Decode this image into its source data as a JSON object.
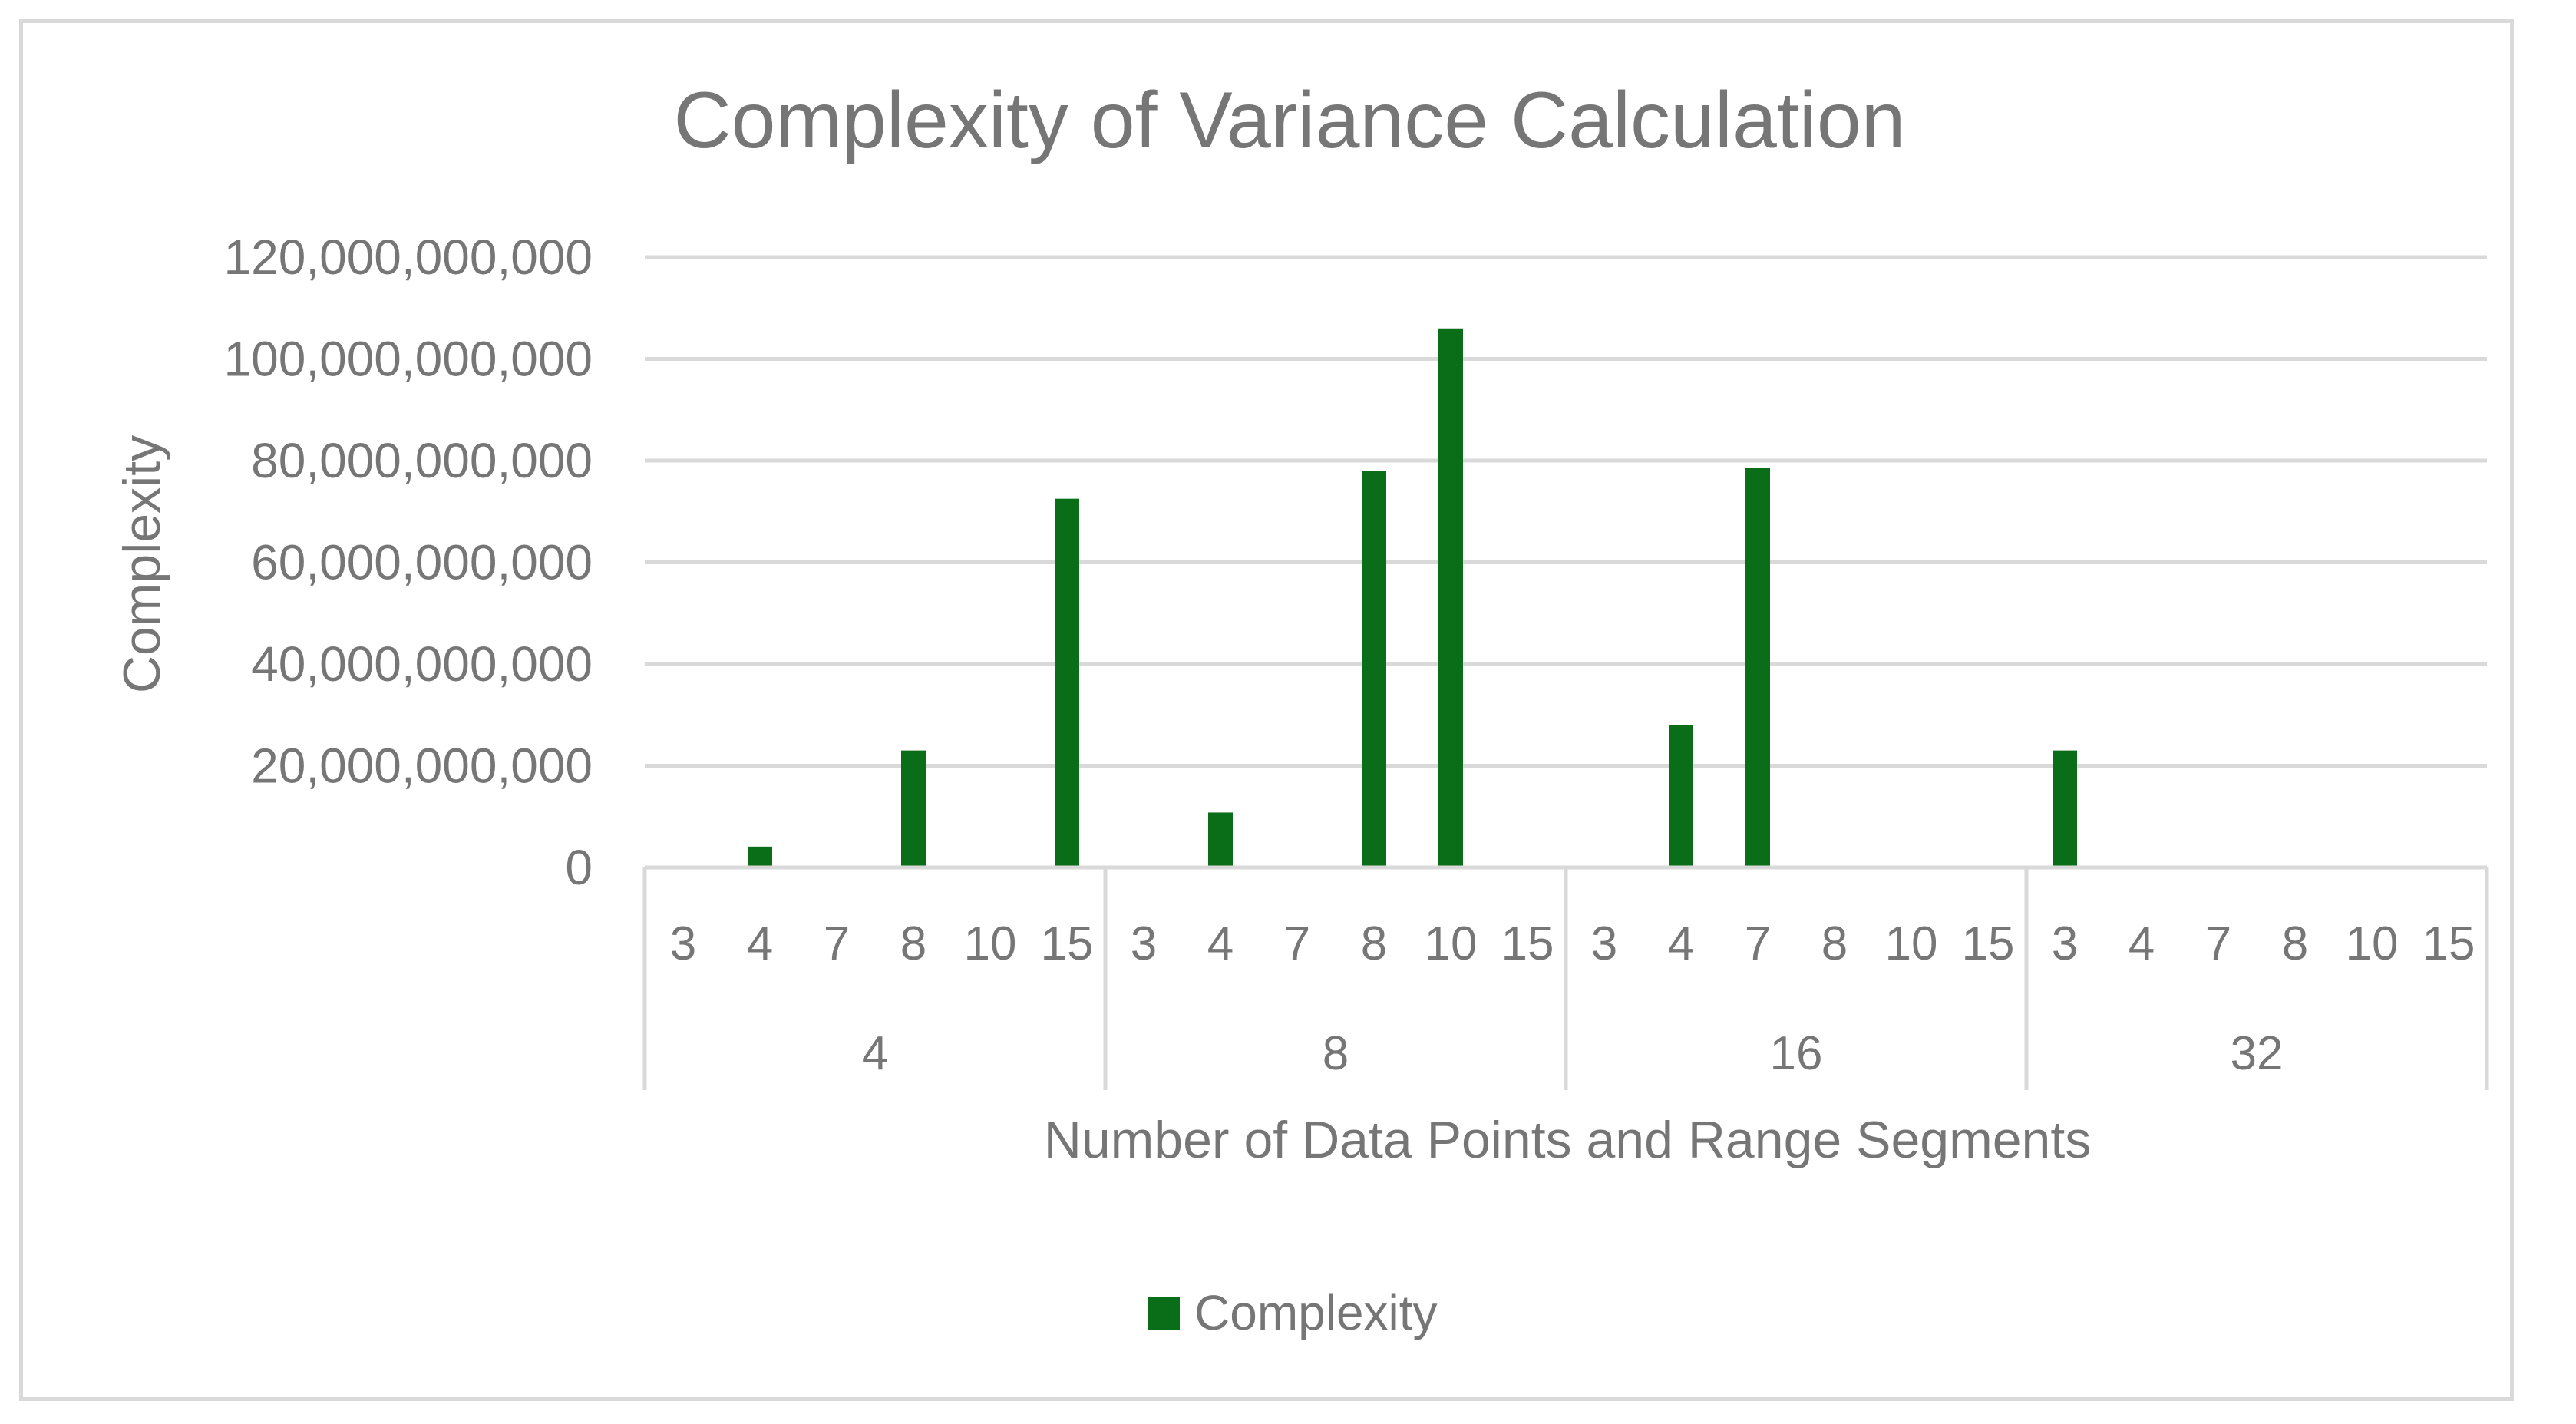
{
  "chart_data": {
    "type": "bar",
    "title": "Complexity of Variance Calculation",
    "xlabel": "Number of Data Points and Range Segments",
    "ylabel": "Complexity",
    "ylim": [
      0,
      120000000000
    ],
    "y_ticks": [
      0,
      20000000000,
      40000000000,
      60000000000,
      80000000000,
      100000000000,
      120000000000
    ],
    "y_tick_labels": [
      "0",
      "20,000,000,000",
      "40,000,000,000",
      "60,000,000,000",
      "80,000,000,000",
      "100,000,000,000",
      "120,000,000,000"
    ],
    "grid": true,
    "legend_position": "bottom",
    "groups": [
      {
        "label": "4",
        "categories": [
          "3",
          "4",
          "7",
          "8",
          "10",
          "15"
        ]
      },
      {
        "label": "8",
        "categories": [
          "3",
          "4",
          "7",
          "8",
          "10",
          "15"
        ]
      },
      {
        "label": "16",
        "categories": [
          "3",
          "4",
          "7",
          "8",
          "10",
          "15"
        ]
      },
      {
        "label": "32",
        "categories": [
          "3",
          "4",
          "7",
          "8",
          "10",
          "15"
        ]
      }
    ],
    "series": [
      {
        "name": "Complexity",
        "color": "#0a6e18",
        "values": [
          0,
          4100000000,
          0,
          23000000000,
          0,
          72500000000,
          0,
          10800000000,
          0,
          78000000000,
          106000000000,
          0,
          0,
          28000000000,
          78500000000,
          0,
          0,
          0,
          23000000000,
          0,
          0,
          0,
          0,
          0
        ]
      }
    ]
  }
}
